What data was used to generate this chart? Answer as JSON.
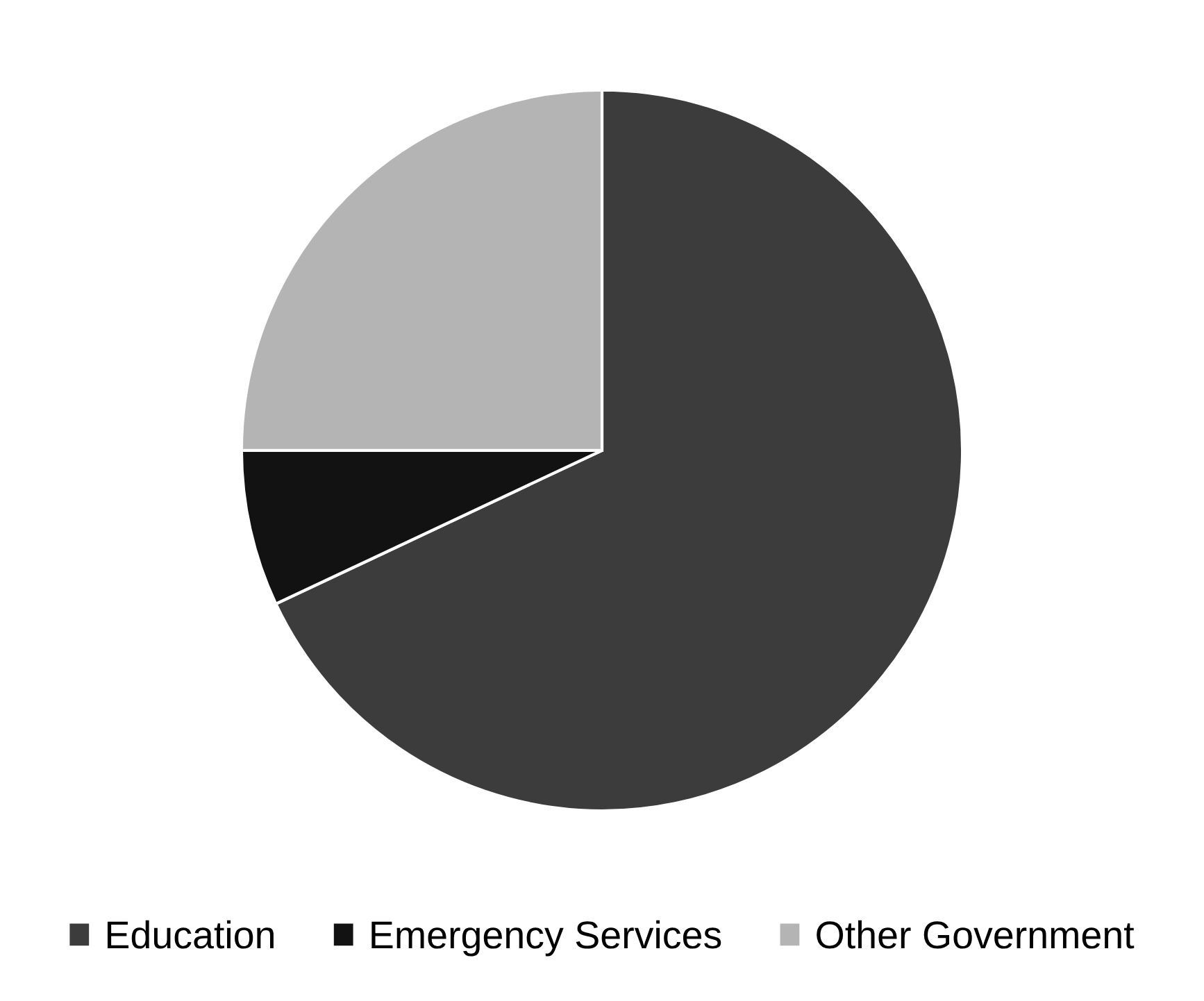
{
  "chart_data": {
    "type": "pie",
    "categories": [
      "Education",
      "Emergency Services",
      "Other Government"
    ],
    "values": [
      68,
      7,
      25
    ],
    "colors": [
      "#3c3c3c",
      "#121212",
      "#b4b4b4"
    ],
    "legend": "bottom"
  }
}
